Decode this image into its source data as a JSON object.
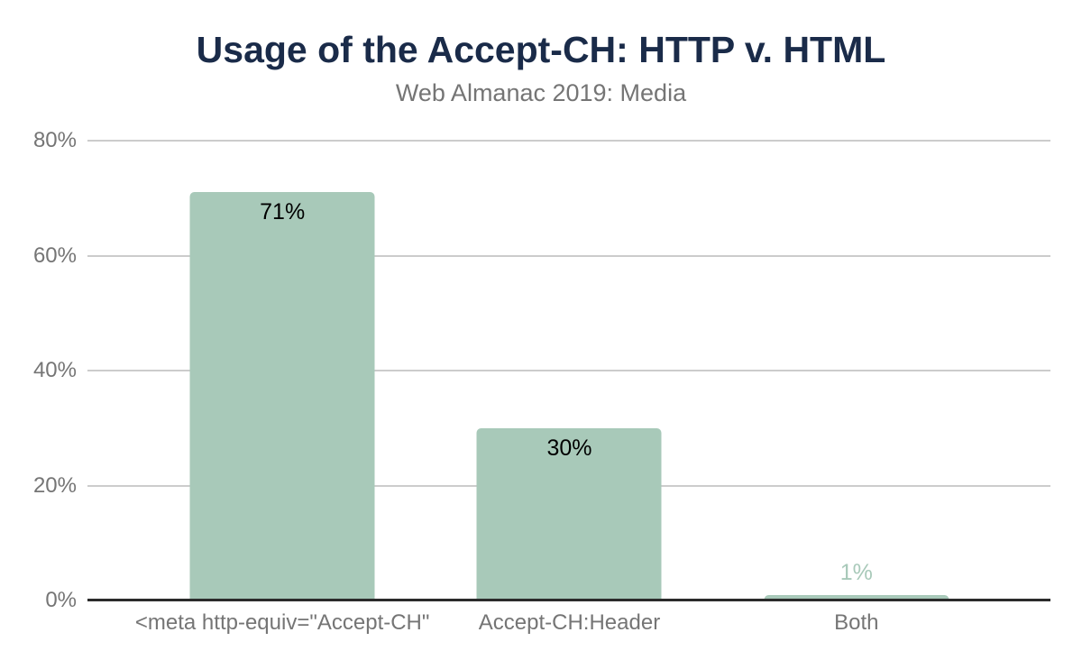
{
  "header": {
    "title": "Usage of the Accept-CH: HTTP v. HTML",
    "subtitle": "Web Almanac 2019: Media"
  },
  "colors": {
    "title_color": "#1a2b49",
    "subtitle_color": "#757575",
    "axis_label": "#757575",
    "bar": "#a8c9b9",
    "gridline": "#cccccc",
    "baseline": "#2b2b2b",
    "data_label_dark": "#000000",
    "data_label_light": "#a8c9b9"
  },
  "chart_data": {
    "type": "bar",
    "title": "Usage of the Accept-CH: HTTP v. HTML",
    "subtitle": "Web Almanac 2019: Media",
    "categories": [
      "<meta http-equiv=\"Accept-CH\"",
      "Accept-CH:Header",
      "Both"
    ],
    "values": [
      71,
      30,
      1
    ],
    "data_labels": [
      "71%",
      "30%",
      "1%"
    ],
    "label_inside": [
      true,
      true,
      false
    ],
    "y_ticks": [
      {
        "value": 0,
        "label": "0%"
      },
      {
        "value": 20,
        "label": "20%"
      },
      {
        "value": 40,
        "label": "40%"
      },
      {
        "value": 60,
        "label": "60%"
      },
      {
        "value": 80,
        "label": "80%"
      }
    ],
    "ylim": [
      0,
      80
    ],
    "xlabel": "",
    "ylabel": "",
    "grid": true,
    "legend": "none",
    "bar_color": "#a8c9b9"
  }
}
